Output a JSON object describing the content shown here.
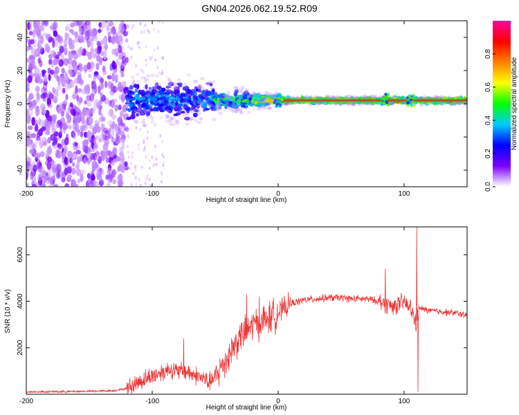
{
  "title": "GN04.2026.062.19.52.R09",
  "chart_data": [
    {
      "type": "heatmap",
      "title": "GN04.2026.062.19.52.R09",
      "xlabel": "Height of straight line (km)",
      "ylabel": "Frequency (Hz)",
      "xlim": [
        -200,
        150
      ],
      "ylim": [
        -50,
        50
      ],
      "x_ticks": [
        -200,
        -100,
        0,
        100
      ],
      "x_tick_labels": [
        "-200",
        "-100",
        "0",
        "100"
      ],
      "y_ticks": [
        -40,
        -20,
        0,
        20,
        40
      ],
      "y_tick_labels": [
        "-40",
        "-20",
        "0",
        "20",
        "40"
      ],
      "colorbar": {
        "label": "Normalized spectral amplitude",
        "range": [
          0,
          1
        ],
        "ticks": [
          0.0,
          0.2,
          0.4,
          0.6,
          0.8
        ],
        "tick_labels": [
          "0.0",
          "0.2",
          "0.4",
          "0.6",
          "0.8"
        ],
        "colors": [
          "#ffffff",
          "#7b00ff",
          "#0000ff",
          "#00ccff",
          "#00ff00",
          "#ffff00",
          "#ff8000",
          "#ff0000",
          "#ff00a0"
        ]
      },
      "features": {
        "noise_region_x": [
          -200,
          -120
        ],
        "transition_region_x": [
          -120,
          -50
        ],
        "signal_line_frequency_hz": 2,
        "signal_segments": [
          {
            "x": [
              -120,
              -50
            ],
            "spread_hz": 12,
            "intensity": 0.35
          },
          {
            "x": [
              -50,
              -20
            ],
            "spread_hz": 6,
            "intensity": 0.5
          },
          {
            "x": [
              -20,
              0
            ],
            "spread_hz": 4,
            "intensity": 0.7
          },
          {
            "x": [
              0,
              150
            ],
            "spread_hz": 2,
            "intensity": 0.85
          }
        ],
        "disturbances_x": [
          0,
          85,
          105
        ]
      }
    },
    {
      "type": "line",
      "xlabel": "Height of straight line (km)",
      "ylabel": "SNR (10 * v/v)",
      "xlim": [
        -200,
        150
      ],
      "ylim": [
        0,
        7200
      ],
      "x_ticks": [
        -200,
        -100,
        0,
        100
      ],
      "x_tick_labels": [
        "-200",
        "-100",
        "0",
        "100"
      ],
      "y_ticks": [
        2000,
        4000,
        6000
      ],
      "y_tick_labels": [
        "2000",
        "4000",
        "6000"
      ],
      "series": [
        {
          "name": "SNR",
          "color": "#ee3333",
          "x": [
            -200,
            -180,
            -160,
            -140,
            -130,
            -120,
            -115,
            -110,
            -100,
            -90,
            -85,
            -80,
            -75,
            -70,
            -65,
            -60,
            -55,
            -50,
            -45,
            -40,
            -35,
            -30,
            -25,
            -20,
            -15,
            -10,
            -5,
            0,
            5,
            10,
            20,
            30,
            40,
            50,
            60,
            70,
            80,
            85,
            90,
            95,
            100,
            105,
            108,
            110,
            112,
            120,
            130,
            140,
            150
          ],
          "values": [
            100,
            110,
            120,
            140,
            160,
            250,
            400,
            550,
            800,
            1000,
            1100,
            950,
            1050,
            900,
            800,
            700,
            500,
            700,
            1200,
            1600,
            2100,
            2500,
            2700,
            3000,
            3100,
            3200,
            3350,
            3500,
            3700,
            3900,
            4050,
            4100,
            4150,
            4150,
            4100,
            4100,
            4000,
            3900,
            3800,
            3850,
            3950,
            3700,
            3300,
            3000,
            3700,
            3600,
            3550,
            3500,
            3400
          ]
        }
      ],
      "spikes": [
        {
          "x": -75,
          "value": 2400
        },
        {
          "x": -25,
          "value": 4300
        },
        {
          "x": -15,
          "value": 4200
        },
        {
          "x": 85,
          "value": 5400
        },
        {
          "x": 110,
          "value": 7200
        },
        {
          "x": 111,
          "value": 100
        }
      ]
    }
  ]
}
